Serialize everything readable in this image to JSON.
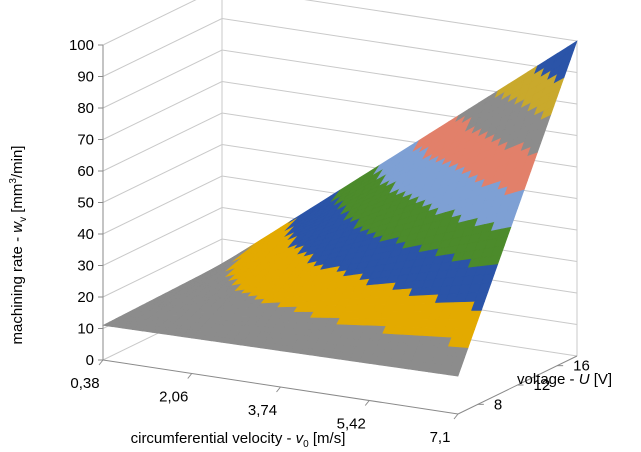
{
  "chart_data": {
    "type": "surface",
    "zlabel": {
      "prefix": "machining rate - ",
      "var": "w",
      "sub": "v",
      "unit_pre": " [mm",
      "unit_sup": "3",
      "unit_post": "/min]"
    },
    "xlabel": {
      "prefix": "circumferential velocity - ",
      "var": "v",
      "sub": "0",
      "unit": " [m/s]"
    },
    "ylabel": {
      "prefix": "voltage - ",
      "var": "U",
      "unit": " [V]"
    },
    "x_ticks": [
      "0,38",
      "2,06",
      "3,74",
      "5,42",
      "7,1"
    ],
    "y_ticks": [
      "8",
      "12",
      "16"
    ],
    "z_ticks": [
      "0",
      "10",
      "20",
      "30",
      "40",
      "50",
      "60",
      "70",
      "80",
      "90",
      "100"
    ],
    "xlim": [
      0.38,
      7.1
    ],
    "ylim": [
      6,
      18
    ],
    "zlim": [
      0,
      100
    ],
    "surface": {
      "description": "machining rate rises with voltage and circumferential velocity",
      "band_step": 10,
      "corner_values": [
        {
          "x": 0.38,
          "y": 6,
          "z": 11
        },
        {
          "x": 7.1,
          "y": 6,
          "z": 12
        },
        {
          "x": 0.38,
          "y": 18,
          "z": 12
        },
        {
          "x": 7.1,
          "y": 18,
          "z": 100
        }
      ]
    },
    "band_colors": [
      "#e46c1e",
      "#8c8c8c",
      "#e3aa00",
      "#2b54a8",
      "#4c8b2b",
      "#7ea0d4",
      "#e2806a",
      "#8c8c8c",
      "#c9a92c",
      "#2b54a8"
    ]
  }
}
